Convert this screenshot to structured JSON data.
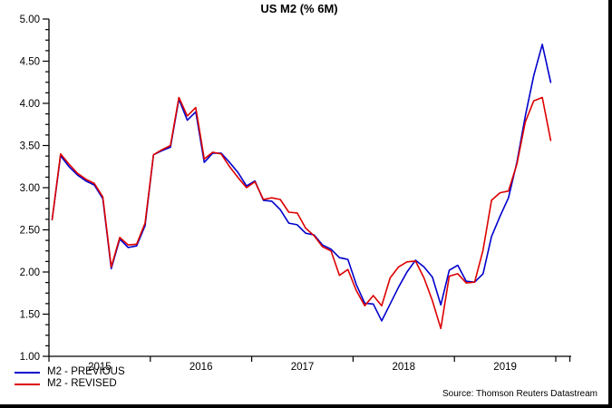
{
  "title": "US M2 (% 6M)",
  "source": "Source: Thomson Reuters Datastream",
  "colors": {
    "previous_line": "#0000cc",
    "revised_line": "#dd0000",
    "axis": "#000000",
    "background": "#ffffff"
  },
  "chart_data": {
    "type": "line",
    "title": "US M2 (% 6M)",
    "x_start": "2015-01",
    "x_end": "2019-12",
    "x_frequency": "monthly",
    "year_labels": [
      "2015",
      "2016",
      "2017",
      "2018",
      "2019"
    ],
    "ylim": [
      1.0,
      5.0
    ],
    "ytick_step": 0.5,
    "ytick_minor_step": 0.125,
    "grid": false,
    "legend_position": "bottom-left",
    "series": [
      {
        "name": "M2 - PREVIOUS",
        "color": "#0000cc",
        "values": [
          2.62,
          3.38,
          3.25,
          3.15,
          3.08,
          3.03,
          2.87,
          2.04,
          2.39,
          2.29,
          2.31,
          2.55,
          3.39,
          3.44,
          3.48,
          4.05,
          3.8,
          3.9,
          3.3,
          3.41,
          3.41,
          3.3,
          3.18,
          3.02,
          3.08,
          2.85,
          2.84,
          2.74,
          2.58,
          2.56,
          2.46,
          2.44,
          2.32,
          2.27,
          2.17,
          2.15,
          1.85,
          1.63,
          1.62,
          1.42,
          1.62,
          1.82,
          2.0,
          2.14,
          2.06,
          1.94,
          1.61,
          2.02,
          2.08,
          1.89,
          1.88,
          1.98,
          2.42,
          2.66,
          2.88,
          3.3,
          3.85,
          4.33,
          4.7,
          4.25
        ]
      },
      {
        "name": "M2 - REVISED",
        "color": "#dd0000",
        "values": [
          2.62,
          3.4,
          3.28,
          3.17,
          3.1,
          3.05,
          2.89,
          2.06,
          2.41,
          2.32,
          2.33,
          2.58,
          3.39,
          3.45,
          3.5,
          4.07,
          3.85,
          3.95,
          3.34,
          3.42,
          3.4,
          3.25,
          3.12,
          3.0,
          3.07,
          2.86,
          2.88,
          2.86,
          2.71,
          2.7,
          2.52,
          2.43,
          2.3,
          2.25,
          1.96,
          2.03,
          1.78,
          1.6,
          1.72,
          1.6,
          1.93,
          2.06,
          2.12,
          2.13,
          1.93,
          1.66,
          1.33,
          1.95,
          1.98,
          1.87,
          1.88,
          2.26,
          2.85,
          2.94,
          2.96,
          3.28,
          3.78,
          4.03,
          4.07,
          3.56
        ]
      }
    ]
  }
}
